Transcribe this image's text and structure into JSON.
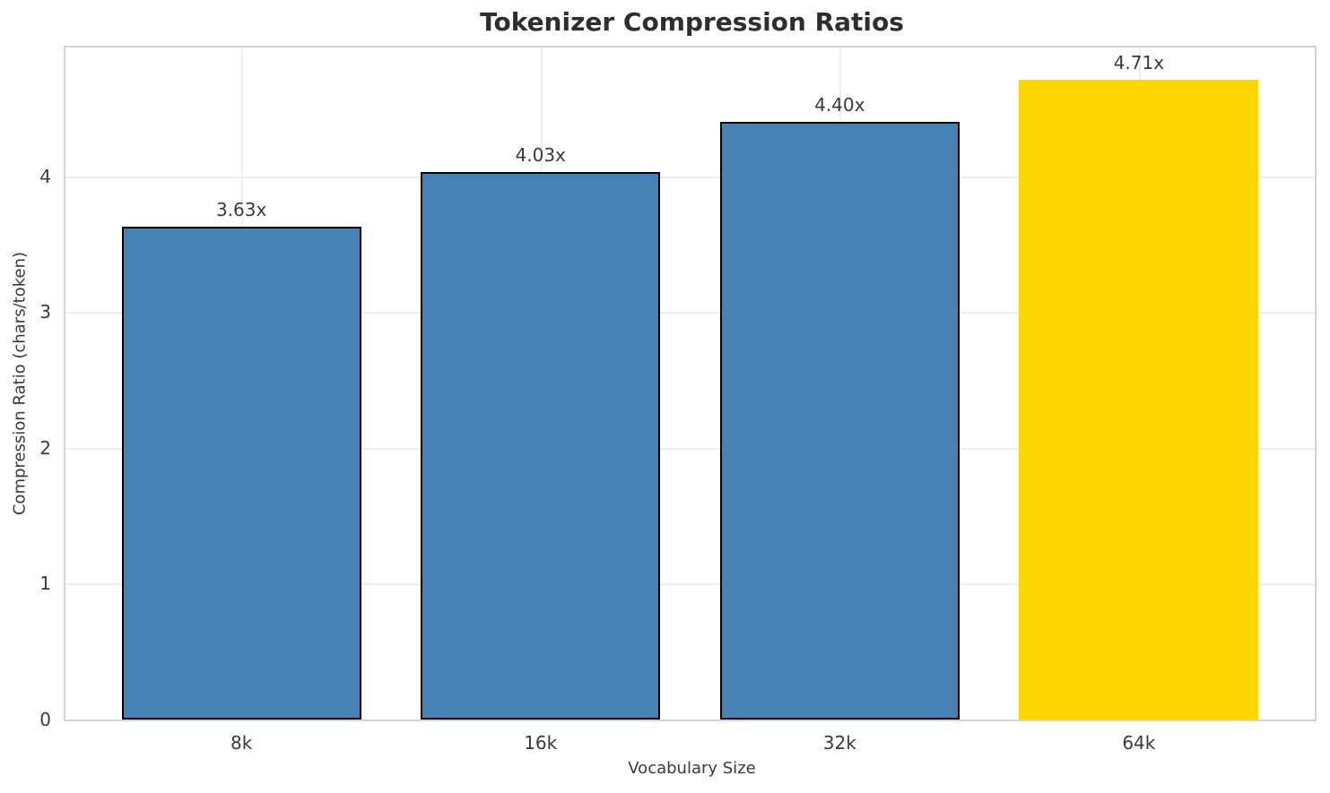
{
  "chart_data": {
    "type": "bar",
    "title": "Tokenizer Compression Ratios",
    "xlabel": "Vocabulary Size",
    "ylabel": "Compression Ratio (chars/token)",
    "categories": [
      "8k",
      "16k",
      "32k",
      "64k"
    ],
    "values": [
      3.63,
      4.03,
      4.4,
      4.71
    ],
    "bar_labels": [
      "3.63x",
      "4.03x",
      "4.40x",
      "4.71x"
    ],
    "bar_colors": [
      "#4682B4",
      "#4682B4",
      "#4682B4",
      "#FFD700"
    ],
    "bar_edge_colors": [
      "#000000",
      "#000000",
      "#000000",
      "none"
    ],
    "yticks": [
      "0",
      "1",
      "2",
      "3",
      "4"
    ],
    "ytick_values": [
      0,
      1,
      2,
      3,
      4
    ],
    "ylim": [
      0,
      4.95
    ],
    "grid": true,
    "legend_position": "none",
    "colors": {
      "base_bar": "#4682B4",
      "highlight_bar": "#FFD700",
      "spine": "#d4d4d4",
      "grid": "#eeeeee",
      "title_text": "#2e2e2e",
      "label_text": "#3a3a3a",
      "background": "#ffffff"
    }
  }
}
